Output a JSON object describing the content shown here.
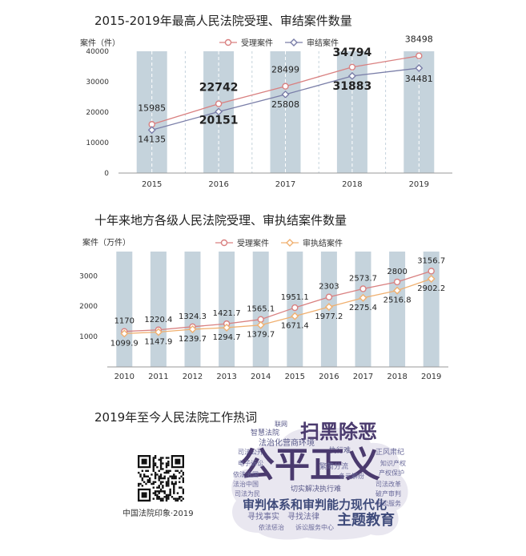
{
  "chart_data": [
    {
      "type": "line",
      "title": "2015-2019年最高人民法院受理、审结案件数量",
      "ylabel": "案件（件）",
      "xlabel": "",
      "categories": [
        "2015",
        "2016",
        "2017",
        "2018",
        "2019"
      ],
      "ylim": [
        0,
        40000
      ],
      "yticks": [
        "0",
        "10000",
        "20000",
        "30000",
        "40000"
      ],
      "grid": false,
      "legend": "top-center",
      "series": [
        {
          "name": "受理案件",
          "values": [
            15985,
            22742,
            28499,
            34794,
            38498
          ],
          "labels": [
            "15985",
            "22742",
            "28499",
            "34794",
            "38498"
          ],
          "color": "#d98080",
          "marker": "circle"
        },
        {
          "name": "审结案件",
          "values": [
            14135,
            20151,
            25808,
            31883,
            34481
          ],
          "labels": [
            "14135",
            "20151",
            "25808",
            "31883",
            "34481"
          ],
          "color": "#7a7ea8",
          "marker": "diamond"
        }
      ]
    },
    {
      "type": "line",
      "title": "十年来地方各级人民法院受理、审执结案件数量",
      "ylabel": "案件（万件）",
      "xlabel": "",
      "categories": [
        "2010",
        "2011",
        "2012",
        "2013",
        "2014",
        "2015",
        "2016",
        "2017",
        "2018",
        "2019"
      ],
      "ylim": [
        0,
        3800
      ],
      "yticks": [
        "1000",
        "2000",
        "3000"
      ],
      "grid": false,
      "legend": "top-center",
      "series": [
        {
          "name": "受理案件",
          "values": [
            1170,
            1220.4,
            1324.3,
            1421.7,
            1565.1,
            1951.1,
            2303,
            2573.7,
            2800,
            3156.7
          ],
          "labels": [
            "1170",
            "1220.4",
            "1324.3",
            "1421.7",
            "1565.1",
            "1951.1",
            "2303",
            "2573.7",
            "2800",
            "3156.7"
          ],
          "color": "#d98080",
          "marker": "circle"
        },
        {
          "name": "审执结案件",
          "values": [
            1099.9,
            1147.9,
            1239.7,
            1294.7,
            1379.7,
            1671.4,
            1977.2,
            2275.4,
            2516.8,
            2902.2
          ],
          "labels": [
            "1099.9",
            "1147.9",
            "1239.7",
            "1294.7",
            "1379.7",
            "1671.4",
            "1977.2",
            "2275.4",
            "2516.8",
            "2902.2"
          ],
          "color": "#f0b070",
          "marker": "diamond"
        }
      ]
    }
  ],
  "wordcloud": {
    "title": "2019年至今人民法院工作热词",
    "words": [
      {
        "text": "公平正义",
        "color": "#4a3a6e"
      },
      {
        "text": "扫黑除恶",
        "color": "#4a3a6e"
      },
      {
        "text": "审判体系和审判能力现代化",
        "color": "#3e4a7a"
      },
      {
        "text": "主题教育",
        "color": "#3e4a7a"
      },
      {
        "text": "法治化营商环境",
        "color": "#5a5a8a"
      },
      {
        "text": "联网",
        "color": "#5a5a8a"
      },
      {
        "text": "智慧法院",
        "color": "#5a5a8a"
      },
      {
        "text": "执行难",
        "color": "#5a5a8a"
      },
      {
        "text": "司法公开",
        "color": "#6a6a9a"
      },
      {
        "text": "繁简分流",
        "color": "#6a6a9a"
      },
      {
        "text": "多元解纷",
        "color": "#6a6a9a"
      },
      {
        "text": "正风肃纪",
        "color": "#6a6a9a"
      },
      {
        "text": "司法为民",
        "color": "#6a6a9a"
      },
      {
        "text": "电子诉讼",
        "color": "#6a6a9a"
      },
      {
        "text": "切实解决执行难",
        "color": "#5a5a8a"
      },
      {
        "text": "寻找事实",
        "color": "#6a6a9a"
      },
      {
        "text": "寻找法律",
        "color": "#6a6a9a"
      },
      {
        "text": "诉讼服务",
        "color": "#6a6a9a"
      },
      {
        "text": "依法治国",
        "color": "#6a6a9a"
      },
      {
        "text": "产权保护",
        "color": "#6a6a9a"
      },
      {
        "text": "知识产权",
        "color": "#6a6a9a"
      },
      {
        "text": "法治中国",
        "color": "#6a6a9a"
      },
      {
        "text": "依法惩治",
        "color": "#6a6a9a"
      },
      {
        "text": "诉讼服务中心",
        "color": "#6a6a9a"
      },
      {
        "text": "司法改革",
        "color": "#6a6a9a"
      },
      {
        "text": "破产审判",
        "color": "#6a6a9a"
      }
    ]
  },
  "qr": {
    "caption": "中国法院印象·2019"
  }
}
